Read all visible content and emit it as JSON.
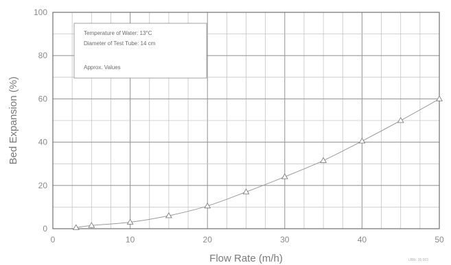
{
  "chart_data": {
    "type": "line",
    "xlabel": "Flow Rate (m/h)",
    "ylabel": "Bed Expansion (%)",
    "xlim": [
      0,
      50
    ],
    "ylim": [
      0,
      100
    ],
    "x_ticks": [
      0,
      10,
      20,
      30,
      40,
      50
    ],
    "y_ticks": [
      0,
      20,
      40,
      60,
      80,
      100
    ],
    "x_minor_step": 2.5,
    "y_minor_step": 10,
    "grid": true,
    "series": [
      {
        "marker": "triangle",
        "color": "#9a9a9a",
        "x": [
          3,
          5,
          10,
          15,
          20,
          25,
          30,
          35,
          40,
          45,
          50
        ],
        "y": [
          0.5,
          1.5,
          3,
          6,
          10.5,
          17,
          24,
          31.5,
          40.5,
          50,
          60
        ]
      }
    ],
    "annotations": [
      "Temperature of Water:  13°C",
      "Diameter of Test Tube:   14 cm",
      "Approx. Values"
    ],
    "corner_code": "LBNr. 35 003"
  }
}
